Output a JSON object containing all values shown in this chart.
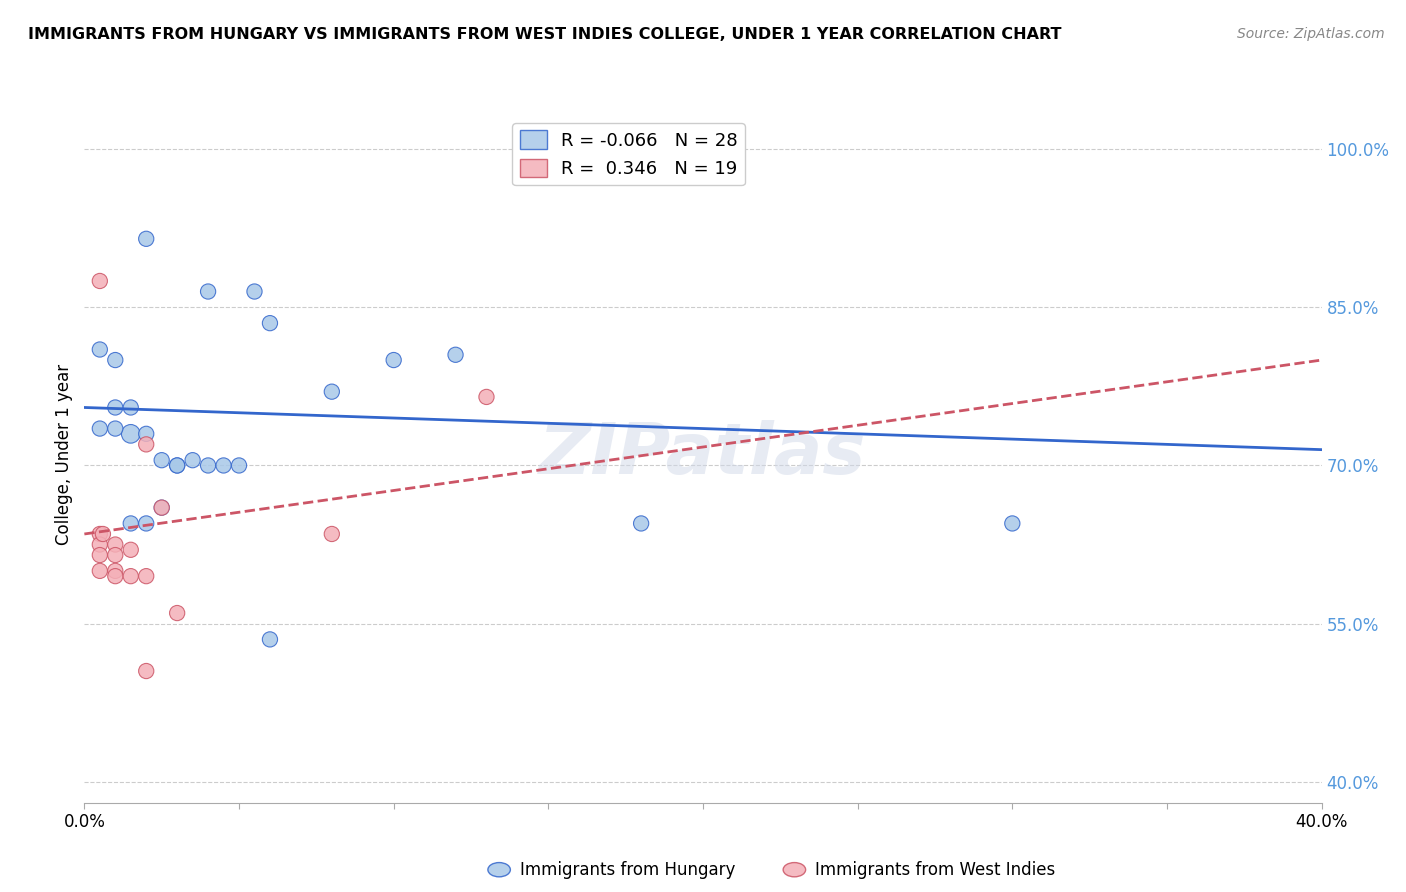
{
  "title": "IMMIGRANTS FROM HUNGARY VS IMMIGRANTS FROM WEST INDIES COLLEGE, UNDER 1 YEAR CORRELATION CHART",
  "source": "Source: ZipAtlas.com",
  "ylabel": "College, Under 1 year",
  "right_ytick_labels": [
    "100.0%",
    "85.0%",
    "70.0%",
    "55.0%",
    "40.0%"
  ],
  "right_ytick_values": [
    1.0,
    0.85,
    0.7,
    0.55,
    0.4
  ],
  "xlim": [
    0.0,
    0.4
  ],
  "ylim": [
    0.38,
    1.04
  ],
  "xtick_values": [
    0.0,
    0.05,
    0.1,
    0.15,
    0.2,
    0.25,
    0.3,
    0.35,
    0.4
  ],
  "xtick_labels": [
    "0.0%",
    "",
    "",
    "",
    "",
    "",
    "",
    "",
    "40.0%"
  ],
  "blue_R": "-0.066",
  "blue_N": "28",
  "pink_R": "0.346",
  "pink_N": "19",
  "blue_scatter_x": [
    0.02,
    0.04,
    0.055,
    0.06,
    0.005,
    0.01,
    0.01,
    0.015,
    0.015,
    0.02,
    0.025,
    0.03,
    0.03,
    0.035,
    0.04,
    0.045,
    0.05,
    0.08,
    0.1,
    0.12,
    0.005,
    0.01,
    0.015,
    0.02,
    0.025,
    0.18,
    0.3,
    0.06
  ],
  "blue_scatter_y": [
    0.915,
    0.865,
    0.865,
    0.835,
    0.81,
    0.8,
    0.755,
    0.755,
    0.73,
    0.73,
    0.705,
    0.7,
    0.7,
    0.705,
    0.7,
    0.7,
    0.7,
    0.77,
    0.8,
    0.805,
    0.735,
    0.735,
    0.645,
    0.645,
    0.66,
    0.645,
    0.645,
    0.535
  ],
  "blue_scatter_sizes": [
    120,
    120,
    120,
    120,
    120,
    120,
    120,
    120,
    180,
    120,
    120,
    120,
    120,
    120,
    120,
    120,
    120,
    120,
    120,
    120,
    120,
    120,
    120,
    120,
    120,
    120,
    120,
    120
  ],
  "pink_scatter_x": [
    0.005,
    0.005,
    0.005,
    0.005,
    0.005,
    0.01,
    0.01,
    0.01,
    0.01,
    0.015,
    0.015,
    0.02,
    0.02,
    0.025,
    0.03,
    0.08,
    0.13,
    0.02,
    0.006
  ],
  "pink_scatter_y": [
    0.875,
    0.635,
    0.625,
    0.615,
    0.6,
    0.625,
    0.615,
    0.6,
    0.595,
    0.62,
    0.595,
    0.595,
    0.72,
    0.66,
    0.56,
    0.635,
    0.765,
    0.505,
    0.635
  ],
  "pink_scatter_sizes": [
    120,
    120,
    120,
    120,
    120,
    120,
    120,
    120,
    120,
    120,
    120,
    120,
    120,
    120,
    120,
    120,
    120,
    120,
    120
  ],
  "blue_line_x": [
    0.0,
    0.4
  ],
  "blue_line_y": [
    0.755,
    0.715
  ],
  "pink_line_x": [
    0.0,
    0.4
  ],
  "pink_line_y": [
    0.635,
    0.8
  ],
  "blue_color": "#a8c8e8",
  "pink_color": "#f4b0b8",
  "blue_line_color": "#3366cc",
  "pink_line_color": "#cc5566",
  "grid_color": "#cccccc",
  "right_axis_color": "#5599dd",
  "background_color": "#ffffff"
}
